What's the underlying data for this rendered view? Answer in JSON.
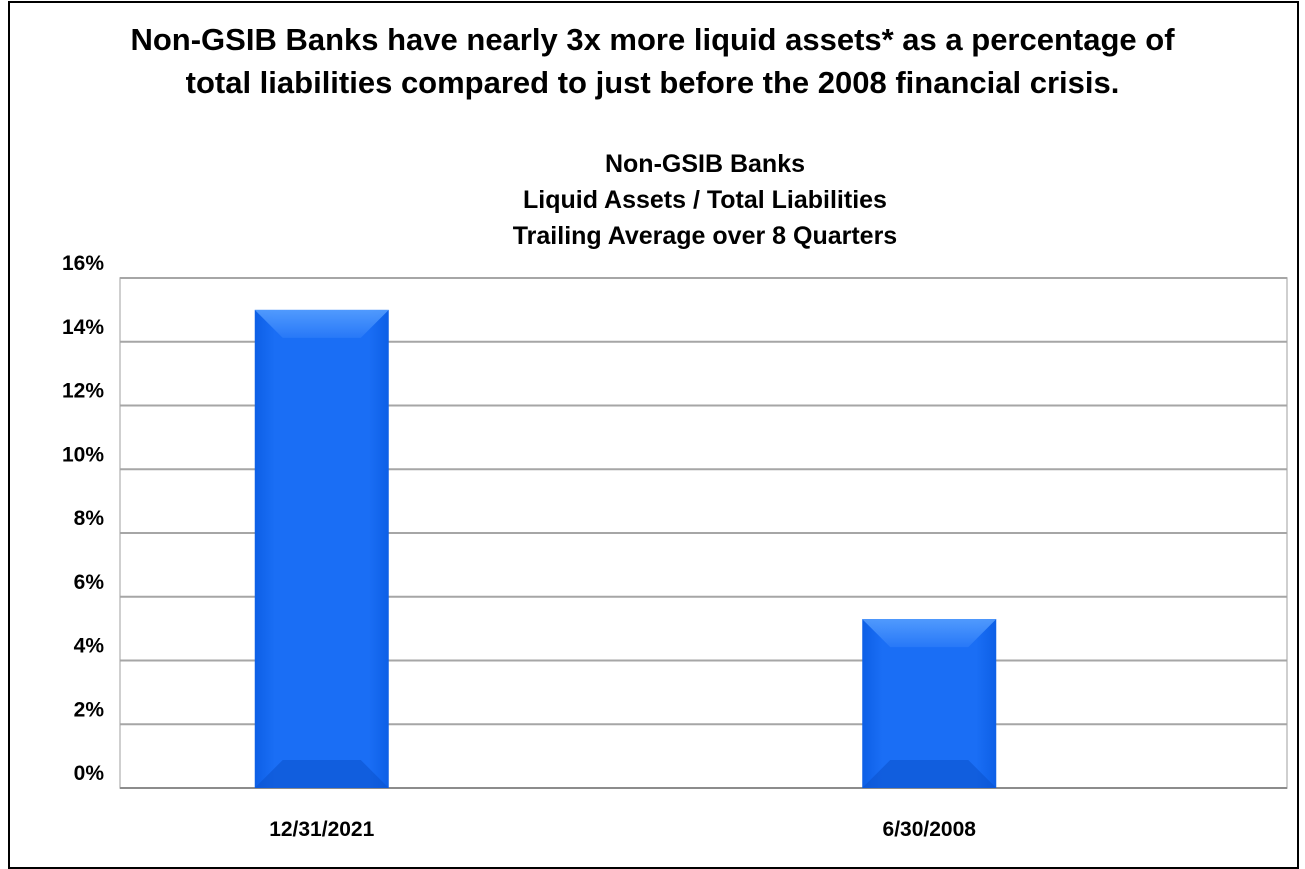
{
  "headline": {
    "line1": "Non-GSIB Banks have nearly 3x more liquid assets* as a percentage of",
    "line2": "total liabilities compared to just before the 2008 financial crisis."
  },
  "chart_data": {
    "type": "bar",
    "title_lines": [
      "Non-GSIB Banks",
      "Liquid Assets / Total Liabilities",
      "Trailing Average over 8 Quarters"
    ],
    "categories": [
      "12/31/2021",
      "6/30/2008"
    ],
    "values": [
      15.0,
      5.3
    ],
    "unit": "%",
    "ylim": [
      0,
      16
    ],
    "yticks": [
      0,
      2,
      4,
      6,
      8,
      10,
      12,
      14,
      16
    ],
    "ytick_labels": [
      "0%",
      "2%",
      "4%",
      "6%",
      "8%",
      "10%",
      "12%",
      "14%",
      "16%"
    ],
    "grid": true,
    "legend": "none",
    "bar_color": "#1a6ef5",
    "bar_highlight": "#4a96ff",
    "grid_color": "#a6a6a6"
  }
}
